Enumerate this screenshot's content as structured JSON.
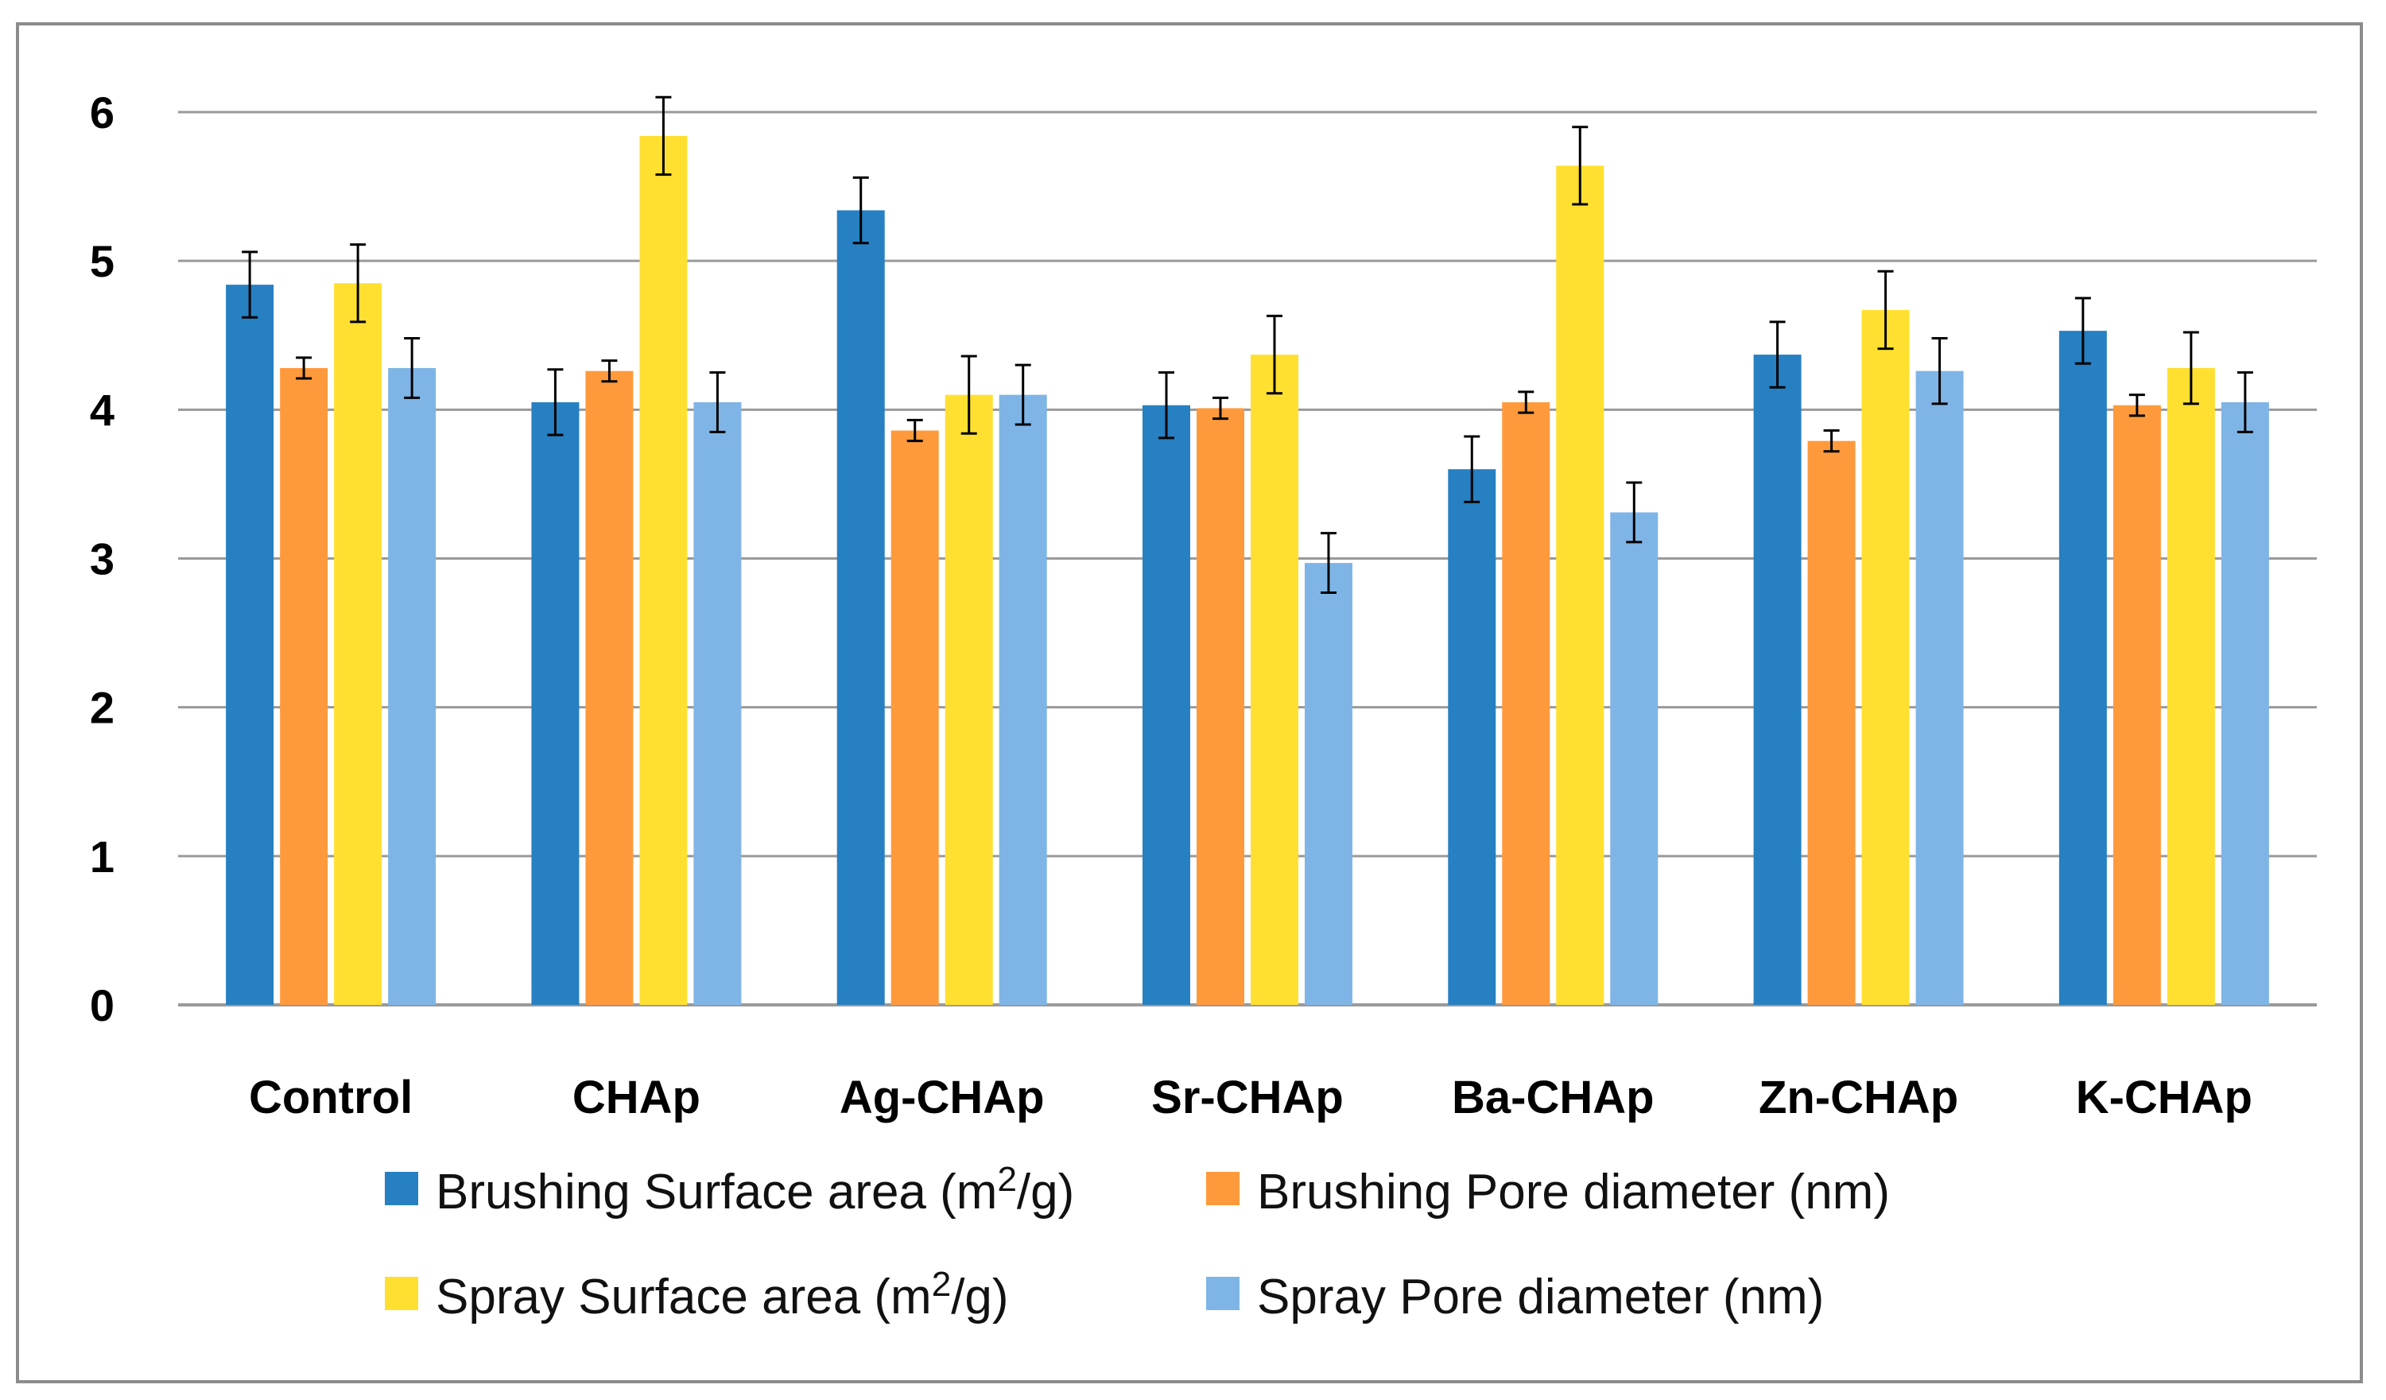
{
  "chart_data": {
    "type": "bar",
    "title": "",
    "xlabel": "",
    "ylabel": "",
    "ylim": [
      0,
      6
    ],
    "yticks": [
      "0",
      "1",
      "2",
      "3",
      "4",
      "5",
      "6"
    ],
    "grid": true,
    "legend_position": "bottom",
    "categories": [
      "Control",
      "CHAp",
      "Ag-CHAp",
      "Sr-CHAp",
      "Ba-CHAp",
      "Zn-CHAp",
      "K-CHAp"
    ],
    "series": [
      {
        "name": "Brushing Surface area (m2/g)",
        "legend_prefix": "Brushing Surface area (m",
        "legend_sup": "2",
        "legend_suffix": "/g)",
        "color": "#2680c2",
        "values": [
          4.84,
          4.05,
          5.34,
          4.03,
          3.6,
          4.37,
          4.53
        ],
        "errors": [
          0.22,
          0.22,
          0.22,
          0.22,
          0.22,
          0.22,
          0.22
        ]
      },
      {
        "name": "Brushing Pore diameter (nm)",
        "legend_prefix": "Brushing Pore diameter (nm)",
        "legend_sup": "",
        "legend_suffix": "",
        "color": "#ff9a3c",
        "values": [
          4.28,
          4.26,
          3.86,
          4.01,
          4.05,
          3.79,
          4.03
        ],
        "errors": [
          0.07,
          0.07,
          0.07,
          0.07,
          0.07,
          0.07,
          0.07
        ]
      },
      {
        "name": "Spray Surface area (m2/g)",
        "legend_prefix": "Spray Surface area (m",
        "legend_sup": "2",
        "legend_suffix": "/g)",
        "color": "#ffe030",
        "values": [
          4.85,
          5.84,
          4.1,
          4.37,
          5.64,
          4.67,
          4.28
        ],
        "errors": [
          0.26,
          0.26,
          0.26,
          0.26,
          0.26,
          0.26,
          0.24
        ]
      },
      {
        "name": "Spray Pore diameter (nm)",
        "legend_prefix": "Spray Pore diameter (nm)",
        "legend_sup": "",
        "legend_suffix": "",
        "color": "#7fb5e6",
        "values": [
          4.28,
          4.05,
          4.1,
          2.97,
          3.31,
          4.26,
          4.05
        ],
        "errors": [
          0.2,
          0.2,
          0.2,
          0.2,
          0.2,
          0.22,
          0.2
        ]
      }
    ]
  }
}
